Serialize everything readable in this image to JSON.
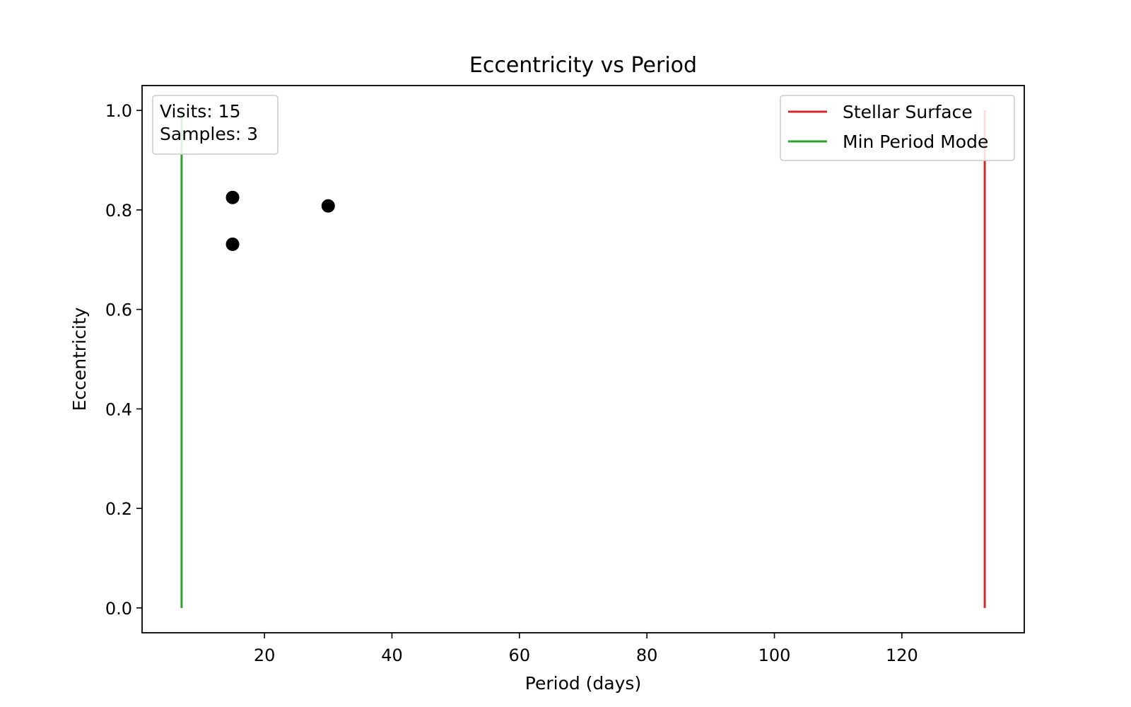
{
  "chart_data": {
    "type": "scatter",
    "title": "Eccentricity vs Period",
    "xlabel": "Period (days)",
    "ylabel": "Eccentricity",
    "xlim": [
      0.8,
      139.2
    ],
    "ylim": [
      -0.05,
      1.05
    ],
    "xticks": [
      20,
      40,
      60,
      80,
      100,
      120
    ],
    "yticks": [
      0.0,
      0.2,
      0.4,
      0.6,
      0.8,
      1.0
    ],
    "ytick_labels": [
      "0.0",
      "0.2",
      "0.4",
      "0.6",
      "0.8",
      "1.0"
    ],
    "grid": false,
    "points": [
      {
        "x": 15.0,
        "y": 0.825
      },
      {
        "x": 15.0,
        "y": 0.731
      },
      {
        "x": 30.0,
        "y": 0.808
      }
    ],
    "point_color": "#000000",
    "vlines": [
      {
        "name": "Stellar Surface",
        "x": 133.0,
        "ymin": 0.0,
        "ymax": 1.0,
        "color": "#d62728"
      },
      {
        "name": "Min Period Mode",
        "x": 7.0,
        "ymin": 0.0,
        "ymax": 1.0,
        "color": "#2ca02c"
      }
    ],
    "legend": {
      "placement": "upper-right",
      "entries": [
        {
          "label": "Stellar Surface",
          "color": "#d62728"
        },
        {
          "label": "Min Period Mode",
          "color": "#2ca02c"
        }
      ]
    },
    "info_box": {
      "placement": "upper-left",
      "lines": [
        "Visits: 15",
        "Samples: 3"
      ]
    }
  }
}
